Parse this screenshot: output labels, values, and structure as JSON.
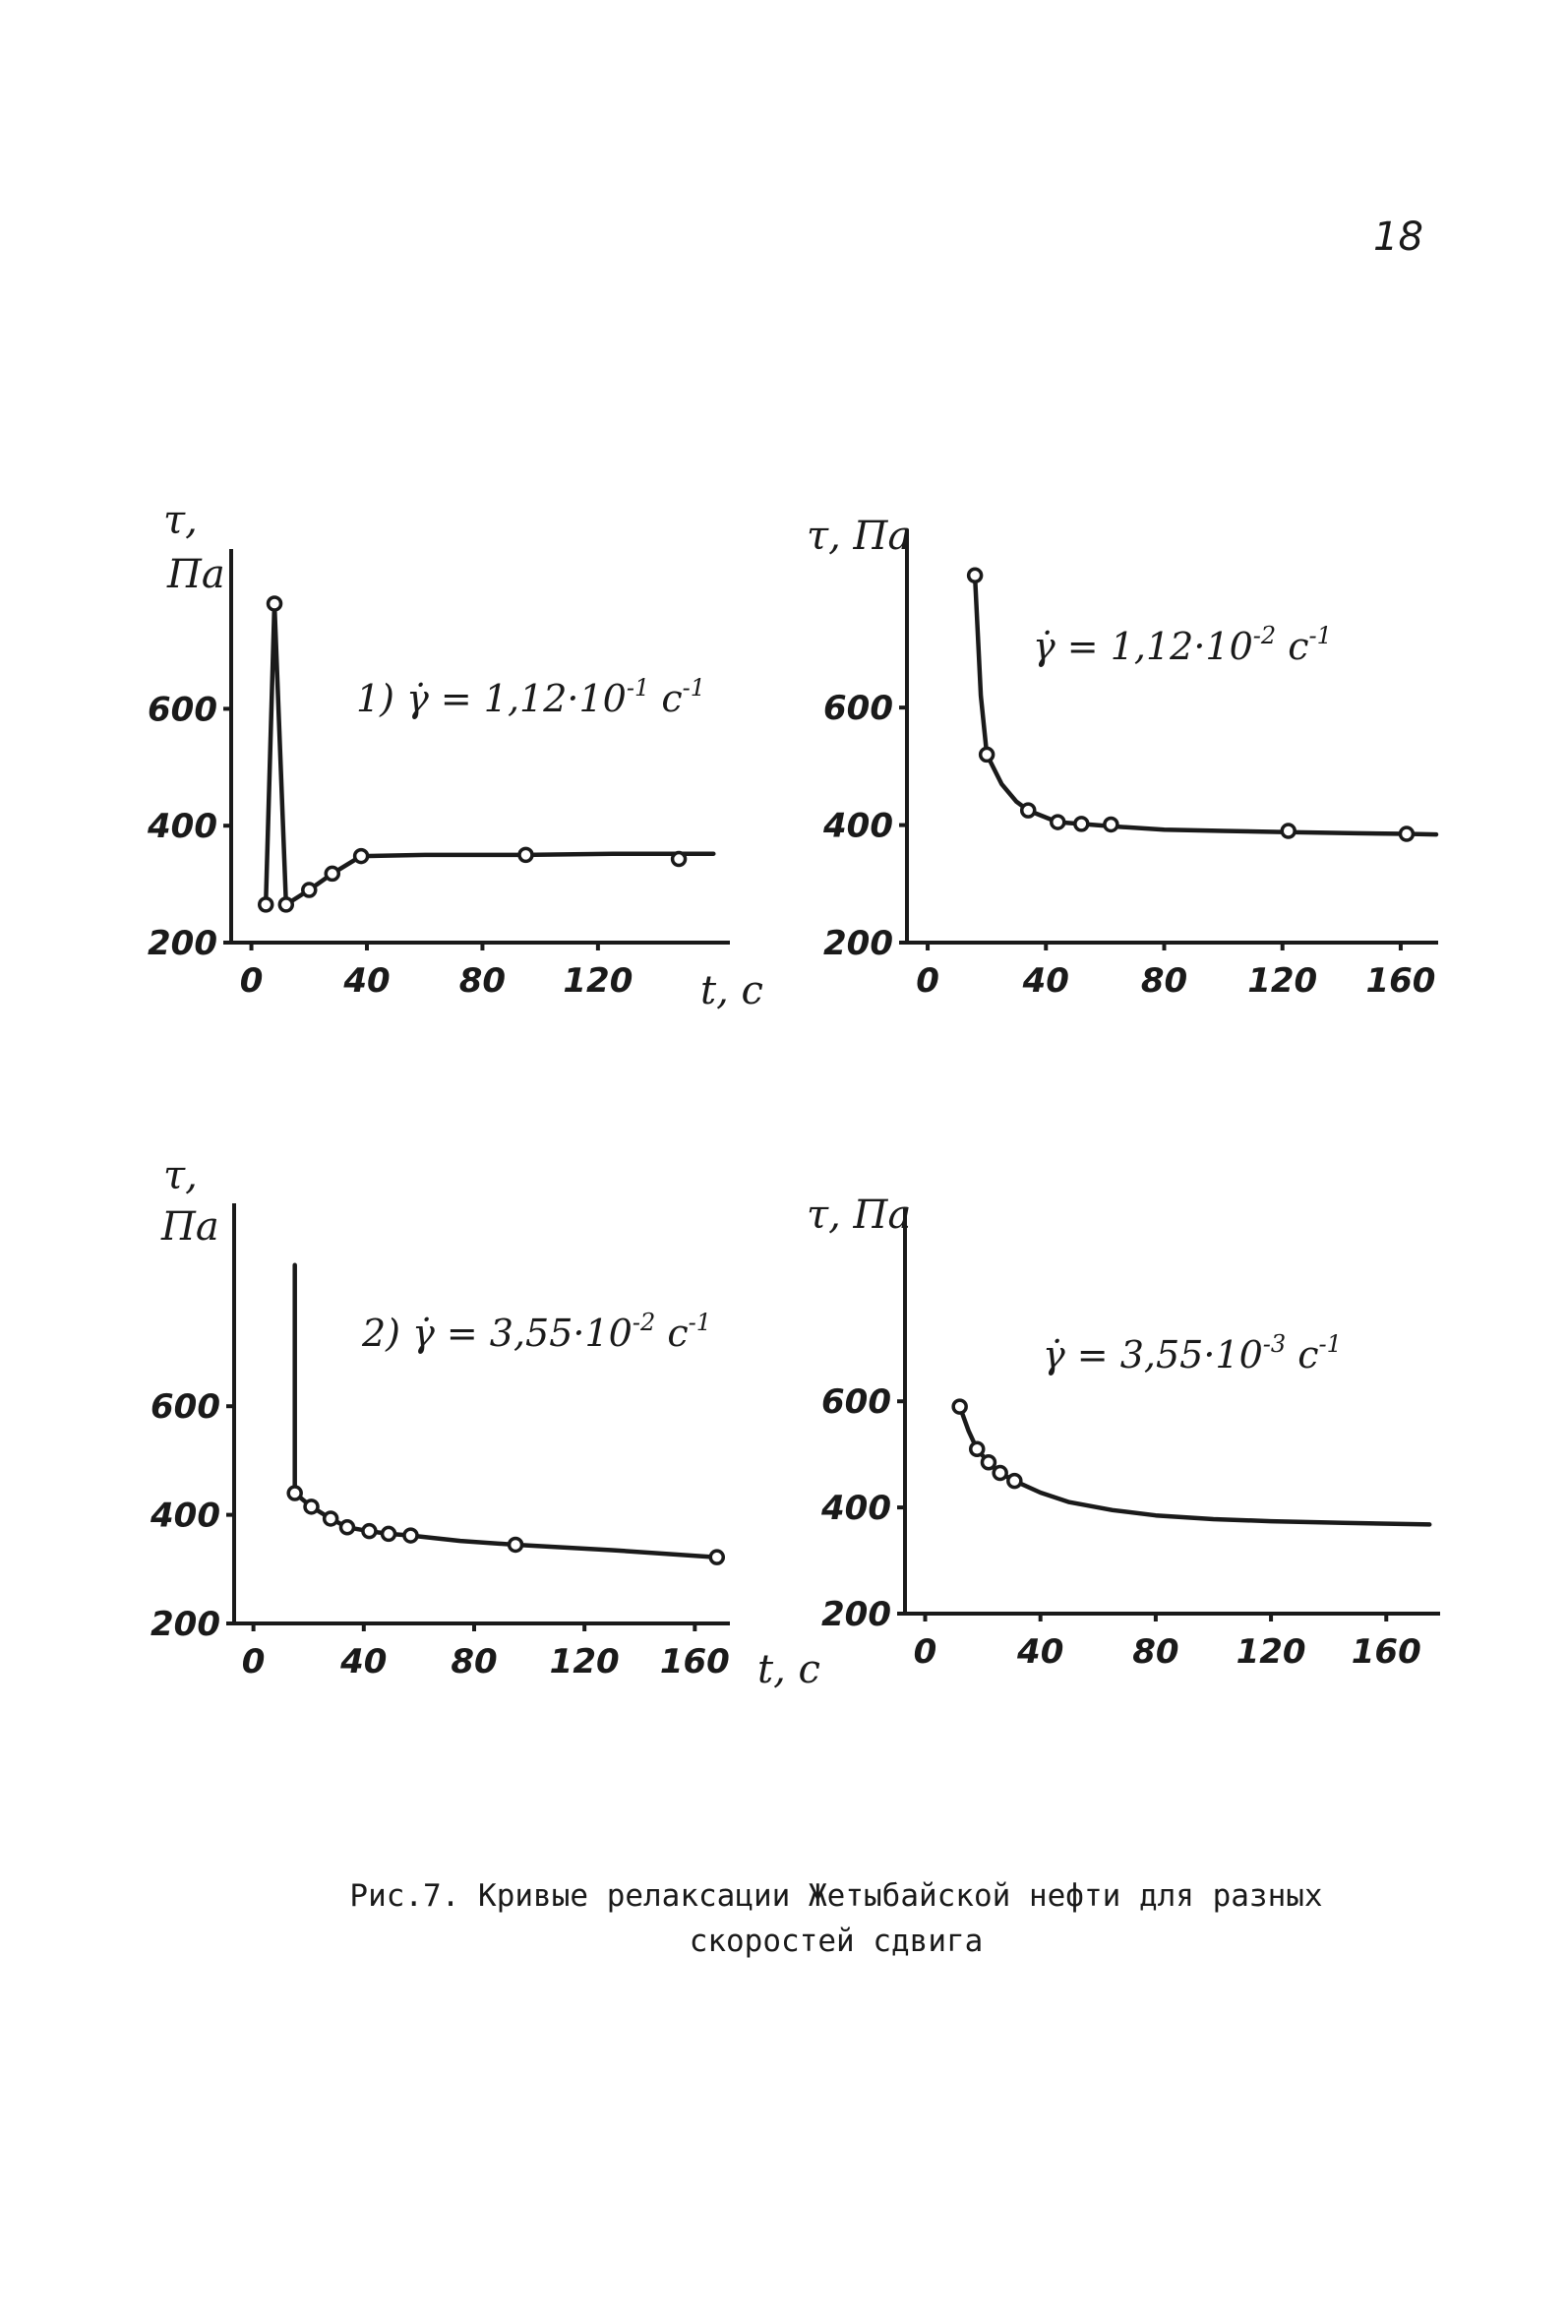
{
  "page_number": "18",
  "caption": {
    "line1": "Рис.7. Кривые релаксации Жетыбайской нефти для разных",
    "line2": "скоростей сдвига"
  },
  "chart_data": [
    {
      "type": "line",
      "annotation": {
        "prefix": "1) γ̇ = 1,12·10",
        "exp": "-1",
        "unit": "c",
        "unit_exp": "-1"
      },
      "ylabel": "τ,",
      "ylabel_unit": "Па",
      "xlabel": "t, с",
      "xlim": [
        -7,
        165
      ],
      "ylim": [
        200,
        870
      ],
      "xticks": [
        "0",
        "40",
        "80",
        "120"
      ],
      "xtick_values": [
        0,
        40,
        80,
        120
      ],
      "yticks": [
        "200",
        "400",
        "600"
      ],
      "ytick_values": [
        200,
        400,
        600
      ],
      "series": [
        {
          "x": [
            5,
            8,
            12,
            20,
            28,
            38,
            95,
            148
          ],
          "y": [
            265,
            780,
            265,
            290,
            318,
            348,
            350,
            343
          ]
        }
      ],
      "curve": {
        "x": [
          5,
          8,
          8,
          12,
          20,
          28,
          38,
          60,
          95,
          125,
          160
        ],
        "y": [
          265,
          780,
          780,
          265,
          290,
          318,
          348,
          350,
          350,
          352,
          352
        ]
      }
    },
    {
      "type": "line",
      "annotation": {
        "prefix": "γ̇ = 1,12·10",
        "exp": "-2",
        "unit": "c",
        "unit_exp": "-1"
      },
      "ylabel": "τ, Па",
      "ylabel_unit": "",
      "xlabel": "",
      "xlim": [
        -7,
        172
      ],
      "ylim": [
        200,
        900
      ],
      "xticks": [
        "0",
        "40",
        "80",
        "120",
        "160"
      ],
      "xtick_values": [
        0,
        40,
        80,
        120,
        160
      ],
      "yticks": [
        "200",
        "400",
        "600"
      ],
      "ytick_values": [
        200,
        400,
        600
      ],
      "series": [
        {
          "x": [
            16,
            20,
            34,
            44,
            52,
            62,
            122,
            162
          ],
          "y": [
            825,
            520,
            425,
            405,
            402,
            401,
            390,
            385
          ]
        }
      ],
      "curve": {
        "x": [
          16,
          18,
          20,
          25,
          30,
          34,
          44,
          52,
          62,
          80,
          100,
          122,
          145,
          162,
          172
        ],
        "y": [
          825,
          620,
          520,
          470,
          440,
          425,
          405,
          402,
          398,
          392,
          390,
          388,
          386,
          385,
          384
        ]
      }
    },
    {
      "type": "line",
      "annotation": {
        "prefix": "2) γ̇ = 3,55·10",
        "exp": "-2",
        "unit": "c",
        "unit_exp": "-1"
      },
      "ylabel": "τ,",
      "ylabel_unit": "Па",
      "xlabel": "t, с",
      "xlim": [
        -7,
        172
      ],
      "ylim": [
        200,
        970
      ],
      "xticks": [
        "0",
        "40",
        "80",
        "120",
        "160"
      ],
      "xtick_values": [
        0,
        40,
        80,
        120,
        160
      ],
      "yticks": [
        "200",
        "400",
        "600"
      ],
      "ytick_values": [
        200,
        400,
        600
      ],
      "series": [
        {
          "x": [
            15,
            21,
            28,
            34,
            42,
            49,
            57,
            95,
            168
          ],
          "y": [
            440,
            415,
            393,
            377,
            370,
            365,
            362,
            345,
            322
          ]
        }
      ],
      "curve": {
        "x": [
          15,
          15,
          21,
          28,
          34,
          42,
          49,
          57,
          75,
          95,
          130,
          168
        ],
        "y": [
          860,
          440,
          415,
          393,
          377,
          370,
          365,
          362,
          352,
          345,
          335,
          322
        ]
      }
    },
    {
      "type": "line",
      "annotation": {
        "prefix": "γ̇ = 3,55·10",
        "exp": "-3",
        "unit": "c",
        "unit_exp": "-1"
      },
      "ylabel": "τ, Па",
      "ylabel_unit": "",
      "xlabel": "",
      "xlim": [
        -7,
        178
      ],
      "ylim": [
        200,
        960
      ],
      "xticks": [
        "0",
        "40",
        "80",
        "120",
        "160"
      ],
      "xtick_values": [
        0,
        40,
        80,
        120,
        160
      ],
      "yticks": [
        "200",
        "400",
        "600"
      ],
      "ytick_values": [
        200,
        400,
        600
      ],
      "series": [
        {
          "x": [
            12,
            18,
            22,
            26,
            31
          ],
          "y": [
            590,
            510,
            485,
            465,
            450
          ]
        }
      ],
      "curve": {
        "x": [
          12,
          15,
          18,
          22,
          26,
          31,
          40,
          50,
          65,
          80,
          100,
          120,
          145,
          175
        ],
        "y": [
          590,
          545,
          510,
          485,
          465,
          450,
          428,
          410,
          395,
          385,
          378,
          374,
          371,
          368
        ]
      }
    }
  ]
}
